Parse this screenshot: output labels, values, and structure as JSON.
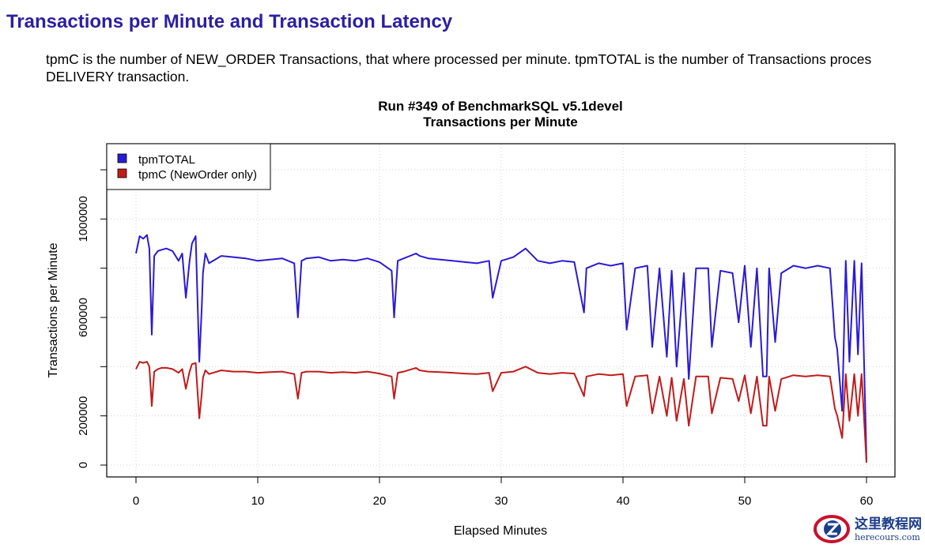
{
  "page": {
    "heading": "Transactions per Minute and Transaction Latency",
    "description_line1": "tpmC is the number of NEW_ORDER Transactions, that where processed per minute. tpmTOTAL is the number of Transactions proces",
    "description_line2": "DELIVERY transaction."
  },
  "watermark": {
    "icon": "z-logo-icon",
    "text_cn": "这里教程网",
    "text_en": "herecours.com",
    "colors": {
      "red": "#c8102e",
      "blue": "#1c3d8c"
    }
  },
  "chart_data": {
    "type": "line",
    "title": "Run #349 of BenchmarkSQL v5.1devel",
    "subtitle": "Transactions per Minute",
    "xlabel": "Elapsed Minutes",
    "ylabel": "Transactions per Minute",
    "xlim": [
      0,
      60
    ],
    "ylim": [
      0,
      1200000
    ],
    "xticks": [
      0,
      10,
      20,
      30,
      40,
      50,
      60
    ],
    "xtick_labels": [
      "0",
      "10",
      "20",
      "30",
      "40",
      "50",
      "60"
    ],
    "yticks": [
      0,
      200000,
      600000,
      1000000
    ],
    "ytick_labels": [
      "0",
      "200000",
      "600000",
      "1000000"
    ],
    "ytick_marks": [
      0,
      200000,
      400000,
      600000,
      800000,
      1000000,
      1200000
    ],
    "grid": true,
    "legend_position": "top-left",
    "series": [
      {
        "name": "tpmTOTAL",
        "color": "#2a1bd4",
        "x": [
          0,
          0.3,
          0.6,
          0.9,
          1.1,
          1.3,
          1.5,
          1.8,
          2.1,
          2.5,
          3.0,
          3.5,
          3.8,
          4.1,
          4.4,
          4.6,
          4.9,
          5.2,
          5.4,
          5.5,
          5.7,
          6.0,
          7,
          8,
          9,
          10,
          11,
          12,
          13,
          13.3,
          13.6,
          14,
          15,
          16,
          17,
          18,
          19,
          20,
          21,
          21.2,
          21.5,
          22,
          23,
          23.3,
          24,
          25,
          26,
          27,
          28,
          29,
          29.3,
          30,
          31,
          32,
          33,
          34,
          35,
          36,
          36.8,
          37,
          38,
          39,
          40,
          40.3,
          41,
          42,
          42.4,
          43,
          43.6,
          44,
          44.4,
          45,
          45.4,
          46,
          47,
          47.3,
          48,
          49,
          49.5,
          50,
          50.5,
          51,
          51.5,
          51.8,
          52,
          52.5,
          53,
          54,
          55,
          56,
          57,
          57.4,
          57.6,
          58,
          58.3,
          58.6,
          59,
          59.3,
          59.6,
          60
        ],
        "y": [
          860000,
          930000,
          920000,
          935000,
          880000,
          530000,
          850000,
          870000,
          875000,
          880000,
          870000,
          830000,
          860000,
          680000,
          830000,
          900000,
          930000,
          420000,
          640000,
          780000,
          860000,
          820000,
          850000,
          845000,
          840000,
          830000,
          835000,
          840000,
          820000,
          600000,
          830000,
          840000,
          845000,
          830000,
          835000,
          830000,
          840000,
          825000,
          790000,
          600000,
          830000,
          840000,
          860000,
          850000,
          840000,
          835000,
          830000,
          825000,
          820000,
          830000,
          680000,
          830000,
          845000,
          880000,
          830000,
          820000,
          830000,
          825000,
          620000,
          800000,
          820000,
          810000,
          820000,
          550000,
          800000,
          810000,
          480000,
          800000,
          440000,
          790000,
          400000,
          780000,
          350000,
          800000,
          800000,
          480000,
          790000,
          780000,
          580000,
          810000,
          480000,
          800000,
          360000,
          360000,
          800000,
          500000,
          780000,
          810000,
          800000,
          810000,
          800000,
          520000,
          470000,
          220000,
          830000,
          420000,
          830000,
          450000,
          820000,
          20000
        ]
      },
      {
        "name": "tpmC (NewOrder only)",
        "color": "#c11b1b",
        "x": [
          0,
          0.3,
          0.6,
          0.9,
          1.1,
          1.3,
          1.5,
          1.8,
          2.1,
          2.5,
          3.0,
          3.5,
          3.8,
          4.1,
          4.4,
          4.6,
          4.9,
          5.2,
          5.4,
          5.5,
          5.7,
          6.0,
          7,
          8,
          9,
          10,
          11,
          12,
          13,
          13.3,
          13.6,
          14,
          15,
          16,
          17,
          18,
          19,
          20,
          21,
          21.2,
          21.5,
          22,
          23,
          23.3,
          24,
          25,
          26,
          27,
          28,
          29,
          29.3,
          30,
          31,
          32,
          33,
          34,
          35,
          36,
          36.8,
          37,
          38,
          39,
          40,
          40.3,
          41,
          42,
          42.4,
          43,
          43.6,
          44,
          44.4,
          45,
          45.4,
          46,
          47,
          47.3,
          48,
          49,
          49.5,
          50,
          50.5,
          51,
          51.5,
          51.8,
          52,
          52.5,
          53,
          54,
          55,
          56,
          57,
          57.4,
          57.6,
          58,
          58.3,
          58.6,
          59,
          59.3,
          59.6,
          60
        ],
        "y": [
          390000,
          420000,
          415000,
          420000,
          400000,
          240000,
          380000,
          390000,
          395000,
          395000,
          390000,
          375000,
          390000,
          310000,
          380000,
          410000,
          415000,
          190000,
          290000,
          355000,
          385000,
          370000,
          385000,
          380000,
          380000,
          375000,
          378000,
          380000,
          370000,
          270000,
          375000,
          380000,
          380000,
          375000,
          378000,
          375000,
          380000,
          372000,
          360000,
          270000,
          375000,
          380000,
          395000,
          385000,
          380000,
          378000,
          375000,
          372000,
          370000,
          375000,
          300000,
          375000,
          380000,
          400000,
          375000,
          370000,
          375000,
          372000,
          280000,
          360000,
          370000,
          365000,
          370000,
          240000,
          360000,
          365000,
          210000,
          360000,
          200000,
          355000,
          180000,
          350000,
          160000,
          360000,
          360000,
          210000,
          355000,
          350000,
          260000,
          365000,
          210000,
          360000,
          160000,
          160000,
          360000,
          220000,
          350000,
          365000,
          360000,
          365000,
          360000,
          230000,
          200000,
          110000,
          370000,
          180000,
          370000,
          200000,
          370000,
          10000
        ]
      }
    ]
  }
}
